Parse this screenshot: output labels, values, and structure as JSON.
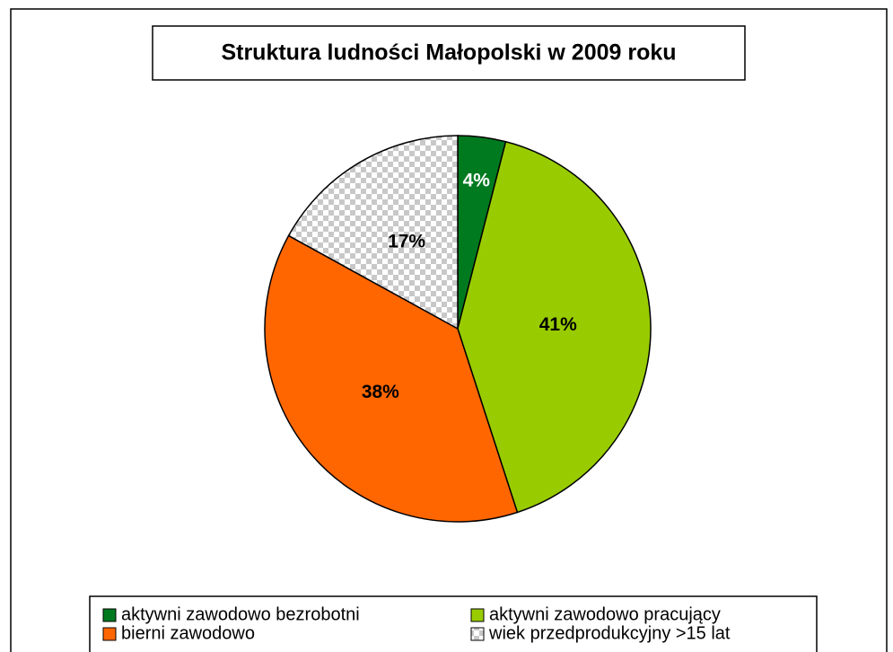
{
  "chart_data": {
    "type": "pie",
    "title": "Struktura ludności Małopolski w 2009 roku",
    "categories": [
      "aktywni zawodowo bezrobotni",
      "aktywni zawodowo pracujący",
      "bierni zawodowo",
      "wiek przedprodukcyjny >15 lat"
    ],
    "values": [
      4,
      41,
      38,
      17
    ],
    "value_labels": [
      "4%",
      "41%",
      "38%",
      "17%"
    ],
    "colors": [
      "#007a1f",
      "#99cc00",
      "#ff6600",
      "#c0c0c0"
    ],
    "patterns": [
      null,
      null,
      null,
      "checker"
    ],
    "legend": "bottom"
  }
}
